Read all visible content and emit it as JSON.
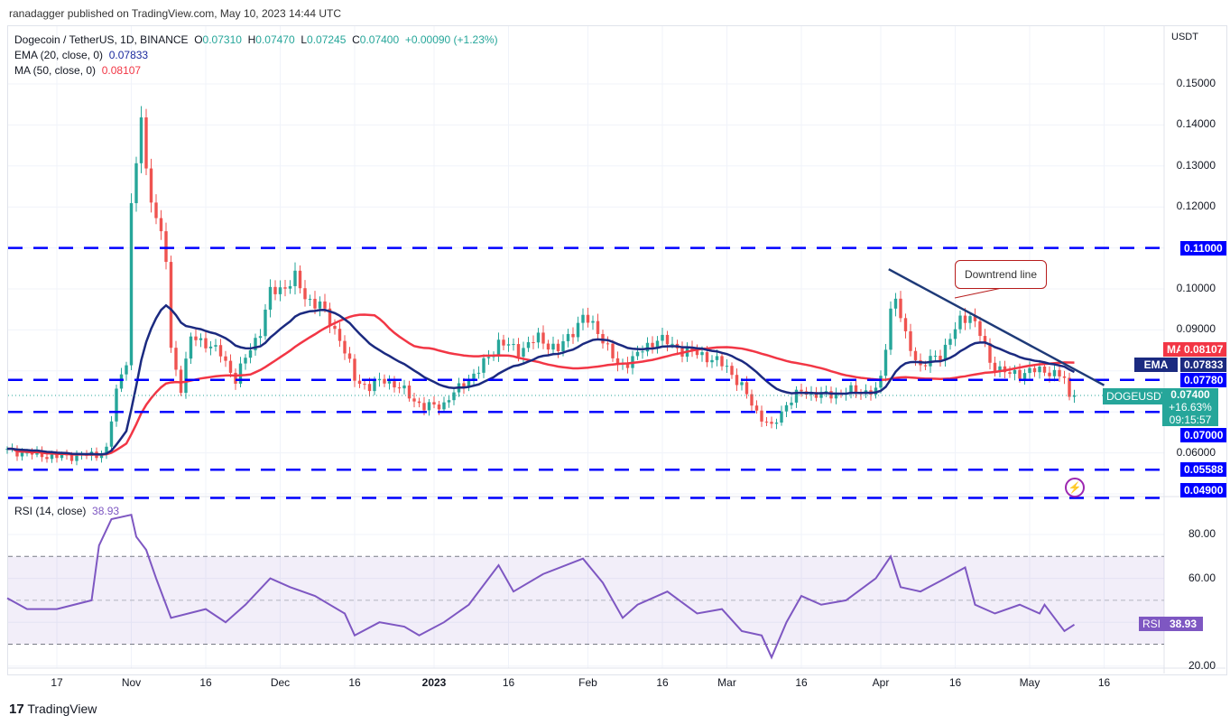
{
  "publisher": "ranadagger published on TradingView.com, May 10, 2023 14:44 UTC",
  "legend": {
    "symbol": "Dogecoin / TetherUS, 1D, BINANCE",
    "o_label": "O",
    "o": "0.07310",
    "h_label": "H",
    "h": "0.07470",
    "l_label": "L",
    "l": "0.07245",
    "c_label": "C",
    "c": "0.07400",
    "change": "+0.00090 (+1.23%)",
    "ema": "EMA (20, close, 0)",
    "ema_val": "0.07833",
    "ma": "MA (50, close, 0)",
    "ma_val": "0.08107",
    "rsi": "RSI (14, close)",
    "rsi_val": "38.93"
  },
  "axis": {
    "currency": "USDT",
    "price_ticks": [
      "0.15000",
      "0.14000",
      "0.13000",
      "0.12000",
      "0.10000",
      "0.09000",
      "0.06000"
    ],
    "rsi_ticks": [
      "80.00",
      "60.00",
      "20.00"
    ]
  },
  "tags": {
    "ma_label": "MA",
    "ma": "0.08107",
    "ema_label": "EMA",
    "ema": "0.07833",
    "l1": "0.07780",
    "sym": "DOGEUSDT",
    "price": "0.07400",
    "pct": "+16.63%",
    "timer": "09:15:57",
    "l2": "0.07000",
    "l3": "0.05588",
    "l4": "0.04900",
    "l5": "0.11000",
    "rsi_label": "RSI",
    "rsi": "38.93"
  },
  "annotation": "Downtrend line",
  "footer": "TradingView",
  "colors": {
    "up": "#26a69a",
    "down": "#ef5350",
    "ema": "#1b2a80",
    "ma": "#f23645",
    "level": "#0000ff",
    "rsi": "#7e57c2",
    "trend": "#1e3a78"
  },
  "chart_data": {
    "type": "candlestick",
    "title": "Dogecoin / TetherUS, 1D, BINANCE",
    "x_unit": "days since 2022-10-07",
    "ylim": [
      0.045,
      0.16
    ],
    "x_ticks": [
      {
        "day": 10,
        "label": "17"
      },
      {
        "day": 25,
        "label": "Nov"
      },
      {
        "day": 40,
        "label": "16"
      },
      {
        "day": 55,
        "label": "Dec"
      },
      {
        "day": 70,
        "label": "16"
      },
      {
        "day": 86,
        "label": "2023"
      },
      {
        "day": 101,
        "label": "16"
      },
      {
        "day": 117,
        "label": "Feb"
      },
      {
        "day": 132,
        "label": "16"
      },
      {
        "day": 145,
        "label": "Mar"
      },
      {
        "day": 160,
        "label": "16"
      },
      {
        "day": 176,
        "label": "Apr"
      },
      {
        "day": 191,
        "label": "16"
      },
      {
        "day": 206,
        "label": "May"
      },
      {
        "day": 221,
        "label": "16"
      }
    ],
    "close_anchors": [
      [
        0,
        0.0605
      ],
      [
        10,
        0.059
      ],
      [
        18,
        0.0595
      ],
      [
        20,
        0.0608
      ],
      [
        22,
        0.075
      ],
      [
        24,
        0.083
      ],
      [
        25,
        0.12
      ],
      [
        26,
        0.13
      ],
      [
        27,
        0.142
      ],
      [
        28,
        0.128
      ],
      [
        30,
        0.118
      ],
      [
        32,
        0.107
      ],
      [
        33,
        0.085
      ],
      [
        35,
        0.076
      ],
      [
        37,
        0.088
      ],
      [
        40,
        0.087
      ],
      [
        43,
        0.084
      ],
      [
        46,
        0.078
      ],
      [
        48,
        0.083
      ],
      [
        51,
        0.09
      ],
      [
        53,
        0.099
      ],
      [
        55,
        0.1
      ],
      [
        58,
        0.1025
      ],
      [
        60,
        0.098
      ],
      [
        63,
        0.096
      ],
      [
        67,
        0.088
      ],
      [
        70,
        0.078
      ],
      [
        73,
        0.076
      ],
      [
        76,
        0.078
      ],
      [
        80,
        0.075
      ],
      [
        84,
        0.071
      ],
      [
        88,
        0.072
      ],
      [
        92,
        0.077
      ],
      [
        95,
        0.08
      ],
      [
        99,
        0.087
      ],
      [
        103,
        0.085
      ],
      [
        107,
        0.088
      ],
      [
        111,
        0.085
      ],
      [
        114,
        0.09
      ],
      [
        116,
        0.093
      ],
      [
        119,
        0.09
      ],
      [
        123,
        0.081
      ],
      [
        126,
        0.083
      ],
      [
        131,
        0.088
      ],
      [
        136,
        0.085
      ],
      [
        140,
        0.084
      ],
      [
        145,
        0.081
      ],
      [
        148,
        0.076
      ],
      [
        151,
        0.07
      ],
      [
        154,
        0.066
      ],
      [
        157,
        0.072
      ],
      [
        160,
        0.075
      ],
      [
        165,
        0.074
      ],
      [
        170,
        0.075
      ],
      [
        175,
        0.075
      ],
      [
        176,
        0.078
      ],
      [
        178,
        0.095
      ],
      [
        179,
        0.098
      ],
      [
        181,
        0.088
      ],
      [
        184,
        0.081
      ],
      [
        188,
        0.084
      ],
      [
        192,
        0.092
      ],
      [
        194,
        0.094
      ],
      [
        196,
        0.089
      ],
      [
        198,
        0.082
      ],
      [
        202,
        0.079
      ],
      [
        206,
        0.08
      ],
      [
        210,
        0.08
      ],
      [
        213,
        0.078
      ],
      [
        214,
        0.0731
      ],
      [
        215,
        0.074
      ]
    ],
    "rsi": [
      [
        0,
        51
      ],
      [
        4,
        46
      ],
      [
        10,
        46
      ],
      [
        17,
        50
      ],
      [
        18.5,
        75
      ],
      [
        21,
        87
      ],
      [
        25,
        89
      ],
      [
        26,
        79
      ],
      [
        28,
        73
      ],
      [
        30,
        60
      ],
      [
        33,
        42
      ],
      [
        40,
        46
      ],
      [
        44,
        40
      ],
      [
        48,
        48
      ],
      [
        53,
        60
      ],
      [
        57,
        56
      ],
      [
        62,
        52
      ],
      [
        68,
        44
      ],
      [
        70,
        34
      ],
      [
        75,
        40
      ],
      [
        80,
        38
      ],
      [
        83,
        34
      ],
      [
        88,
        40
      ],
      [
        93,
        48
      ],
      [
        99,
        66
      ],
      [
        102,
        54
      ],
      [
        108,
        62
      ],
      [
        116,
        69
      ],
      [
        120,
        58
      ],
      [
        124,
        42
      ],
      [
        127,
        48
      ],
      [
        133,
        54
      ],
      [
        139,
        44
      ],
      [
        144,
        46
      ],
      [
        148,
        36
      ],
      [
        152,
        34
      ],
      [
        154,
        24
      ],
      [
        157,
        40
      ],
      [
        160,
        52
      ],
      [
        164,
        48
      ],
      [
        169,
        50
      ],
      [
        175,
        60
      ],
      [
        178,
        70
      ],
      [
        180,
        56
      ],
      [
        184,
        54
      ],
      [
        189,
        60
      ],
      [
        193,
        65
      ],
      [
        195,
        48
      ],
      [
        199,
        44
      ],
      [
        204,
        48
      ],
      [
        208,
        44
      ],
      [
        209,
        48
      ],
      [
        213,
        36
      ],
      [
        215,
        38.93
      ]
    ],
    "levels": [
      0.11,
      0.0778,
      0.07,
      0.05588,
      0.049
    ],
    "downtrend_line": [
      [
        177.6,
        0.1048
      ],
      [
        221,
        0.0765
      ]
    ],
    "rsi_bands": [
      70,
      50,
      30
    ]
  }
}
